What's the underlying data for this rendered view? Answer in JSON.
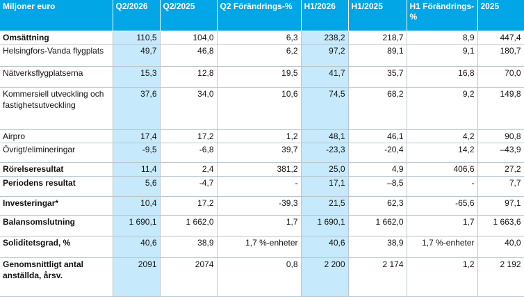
{
  "header": [
    "Miljoner euro",
    "Q2/2026",
    "Q2/2025",
    "Q2 Förändrings-%",
    "H1/2026",
    "H1/2025",
    "H1 Förändrings-%",
    "2025"
  ],
  "rows": [
    {
      "label": "Omsättning",
      "bold": true,
      "height": 18,
      "values": [
        "110,5",
        "104,0",
        "6,3",
        "238,2",
        "218,7",
        "8,9",
        "447,4"
      ]
    },
    {
      "label": "Helsingfors-Vanda flygplats",
      "bold": false,
      "height": 32,
      "values": [
        "49,7",
        "46,8",
        "6,2",
        "97,2",
        "89,1",
        "9,1",
        "180,7"
      ]
    },
    {
      "label": "Nätverksflygplatserna",
      "bold": false,
      "height": 30,
      "values": [
        "15,3",
        "12,8",
        "19,5",
        "41,7",
        "35,7",
        "16,8",
        "70,0"
      ]
    },
    {
      "label": "Kommersiell utveckling och fastighetsutveckling",
      "bold": false,
      "height": 61,
      "values": [
        "37,6",
        "34,0",
        "10,6",
        "74,5",
        "68,2",
        "9,2",
        "149,8"
      ]
    },
    {
      "label": "Airpro",
      "bold": false,
      "height": 18,
      "values": [
        "17,4",
        "17,2",
        "1,2",
        "48,1",
        "46,1",
        "4,2",
        "90,8"
      ]
    },
    {
      "label": "Övrigt/elimineringar",
      "bold": false,
      "height": 28,
      "values": [
        "-9,5",
        "-6,8",
        "39,7",
        "-23,3",
        "-20,4",
        "14,2",
        "–43,9"
      ]
    },
    {
      "label": "Rörelseresultat",
      "bold": true,
      "height": 20,
      "values": [
        "11,4",
        "2,4",
        "381,2",
        "25,0",
        "4,9",
        "406,6",
        "27,2"
      ]
    },
    {
      "label": "Periodens resultat",
      "bold": true,
      "height": 29,
      "values": [
        "5,6",
        "-4,7",
        "-",
        "17,1",
        "–8,5",
        "-",
        "7,7"
      ]
    },
    {
      "label": "Investeringar*",
      "bold": true,
      "height": 27,
      "values": [
        "10,4",
        "17,2",
        "-39,3",
        "21,5",
        "62,3",
        "-65,6",
        "97,1"
      ]
    },
    {
      "label": "Balansomslutning",
      "bold": true,
      "height": 30,
      "values": [
        "1 690,1",
        "1 662,0",
        "1,7",
        "1 690,1",
        "1 662,0",
        "1,7",
        "1 663,6"
      ]
    },
    {
      "label": "Soliditetsgrad, %",
      "bold": true,
      "height": 31,
      "values": [
        "40,6",
        "38,9",
        "1,7 %-enheter",
        "40,6",
        "38,9",
        "1,7 %-enheter",
        "40,0"
      ]
    },
    {
      "label": "Genomsnittligt antal anställda, årsv.",
      "bold": true,
      "height": 56,
      "values": [
        "2091",
        "2074",
        "0,8",
        "2 200",
        "2 174",
        "1,2",
        "2 192"
      ]
    }
  ]
}
